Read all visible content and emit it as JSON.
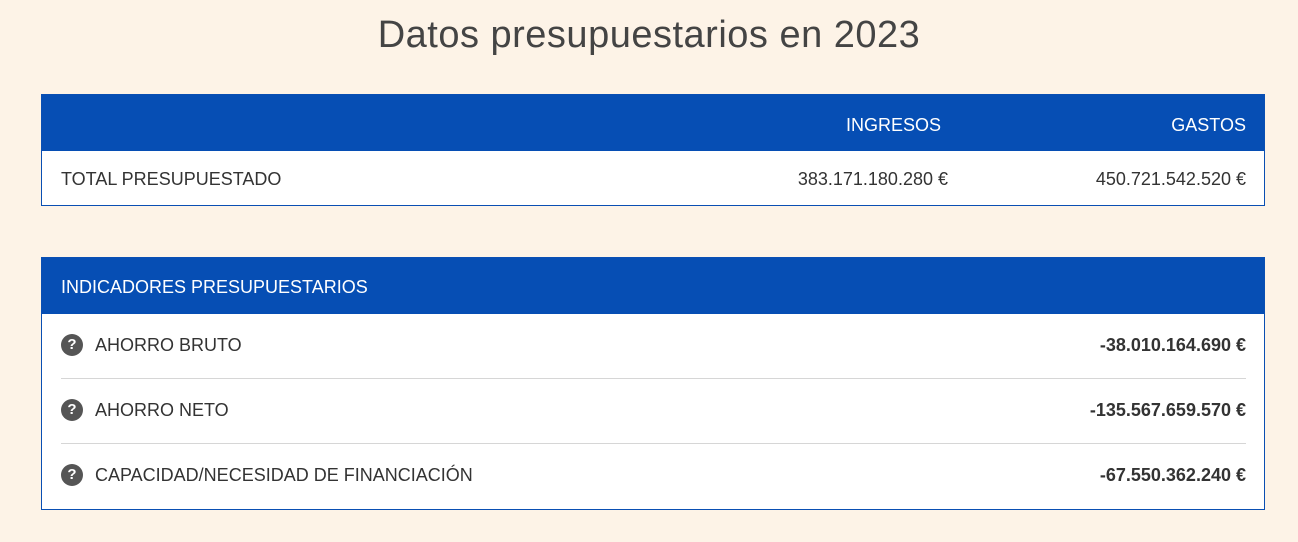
{
  "page": {
    "title": "Datos presupuestarios en 2023"
  },
  "totals": {
    "header": {
      "income": "INGRESOS",
      "expenses": "GASTOS"
    },
    "row": {
      "label": "TOTAL PRESUPUESTADO",
      "income": "383.171.180.280 €",
      "expenses": "450.721.542.520 €"
    }
  },
  "indicators": {
    "title": "INDICADORES PRESUPUESTARIOS",
    "help_glyph": "?",
    "help_icon": "question-circle-icon",
    "rows": [
      {
        "label": "AHORRO BRUTO",
        "value": "-38.010.164.690 €"
      },
      {
        "label": "AHORRO NETO",
        "value": "-135.567.659.570 €"
      },
      {
        "label": "CAPACIDAD/NECESIDAD DE FINANCIACIÓN",
        "value": "-67.550.362.240 €"
      }
    ]
  },
  "colors": {
    "background": "#fdf3e7",
    "header_blue": "#064eb4",
    "text": "#333333"
  }
}
